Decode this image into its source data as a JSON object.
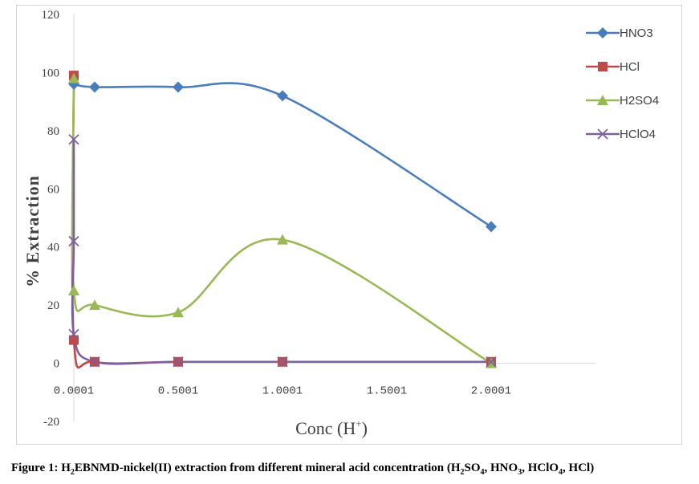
{
  "chart_data": {
    "type": "line",
    "x": [
      0.0001,
      0.1001,
      0.5001,
      1.0001,
      2.0001
    ],
    "x_tick_labels": [
      "0.0001",
      "0.5001",
      "1.0001",
      "1.5001",
      "2.0001"
    ],
    "x_ticks": [
      0.0001,
      0.5001,
      1.0001,
      1.5001,
      2.0001
    ],
    "xlim": [
      0.0001,
      2.5
    ],
    "ylim": [
      -20,
      120
    ],
    "y_ticks": [
      -20,
      0,
      20,
      40,
      60,
      80,
      100,
      120
    ],
    "xlabel": "Conc (H",
    "xlabel_sup": "+",
    "xlabel_close": ")",
    "ylabel": "% Extraction",
    "legend_position": "right",
    "grid": false,
    "series": [
      {
        "name": "HNO3",
        "color": "#4a7ebb",
        "marker": "diamond",
        "points": [
          [
            0.0001,
            96
          ],
          [
            0.1001,
            95
          ],
          [
            0.5001,
            95
          ],
          [
            1.0001,
            92
          ],
          [
            2.0001,
            47
          ]
        ]
      },
      {
        "name": "HCl",
        "color": "#be4b48",
        "marker": "square",
        "points": [
          [
            0.0001,
            99
          ],
          [
            0.0001,
            8
          ],
          [
            0.1001,
            0.5
          ],
          [
            0.5001,
            0.5
          ],
          [
            1.0001,
            0.5
          ],
          [
            2.0001,
            0.5
          ]
        ]
      },
      {
        "name": "H2SO4",
        "color": "#98b954",
        "marker": "triangle",
        "points": [
          [
            0.0001,
            98
          ],
          [
            0.0001,
            25
          ],
          [
            0.1001,
            20
          ],
          [
            0.5001,
            17.5
          ],
          [
            1.0001,
            42.5
          ],
          [
            2.0001,
            0
          ]
        ]
      },
      {
        "name": "HClO4",
        "color": "#7d60a0",
        "marker": "x",
        "points": [
          [
            0.0001,
            77
          ],
          [
            0.0001,
            42
          ],
          [
            0.0001,
            10
          ],
          [
            0.1001,
            0.5
          ],
          [
            0.5001,
            0.5
          ],
          [
            1.0001,
            0.5
          ],
          [
            2.0001,
            0.5
          ]
        ]
      }
    ]
  },
  "caption": {
    "prefix": "Figure 1: H",
    "sub1": "2",
    "mid": "EBNMD-nickel(II) extraction from different mineral acid concentration (H",
    "sub2": "2",
    "mid2": "SO",
    "sub3": "4",
    "mid3": ", HNO",
    "sub4": "3",
    "mid4": ", HClO",
    "sub5": "4",
    "suffix": ", HCl)"
  }
}
